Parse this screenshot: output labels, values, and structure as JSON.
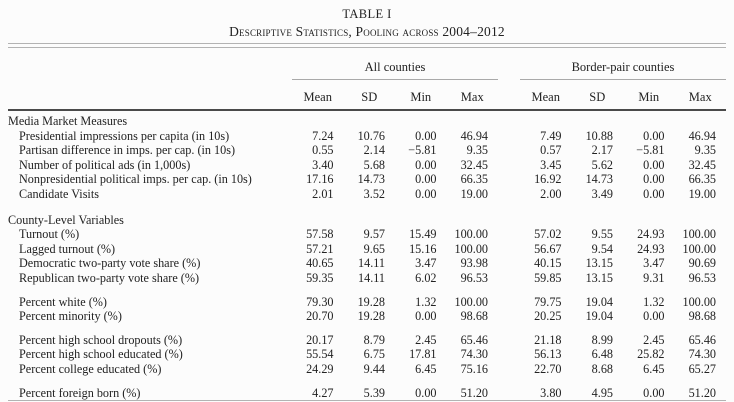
{
  "title": "TABLE I",
  "subtitle": "Descriptive Statistics, Pooling across 2004–2012",
  "column_groups": [
    {
      "label": "All counties"
    },
    {
      "label": "Border-pair counties"
    }
  ],
  "stat_headers": [
    "Mean",
    "SD",
    "Min",
    "Max"
  ],
  "sections": [
    {
      "header": "Media Market Measures",
      "groups": [
        [
          {
            "label": "Presidential impressions per capita (in 10s)",
            "values": [
              "7.24",
              "10.76",
              "0.00",
              "46.94",
              "7.49",
              "10.88",
              "0.00",
              "46.94"
            ]
          },
          {
            "label": "Partisan difference in imps. per cap. (in 10s)",
            "values": [
              "0.55",
              "2.14",
              "−5.81",
              "9.35",
              "0.57",
              "2.17",
              "−5.81",
              "9.35"
            ]
          },
          {
            "label": "Number of political ads (in 1,000s)",
            "values": [
              "3.40",
              "5.68",
              "0.00",
              "32.45",
              "3.45",
              "5.62",
              "0.00",
              "32.45"
            ]
          },
          {
            "label": "Nonpresidential political imps. per cap. (in 10s)",
            "values": [
              "17.16",
              "14.73",
              "0.00",
              "66.35",
              "16.92",
              "14.73",
              "0.00",
              "66.35"
            ]
          },
          {
            "label": "Candidate Visits",
            "values": [
              "2.01",
              "3.52",
              "0.00",
              "19.00",
              "2.00",
              "3.49",
              "0.00",
              "19.00"
            ]
          }
        ]
      ]
    },
    {
      "header": "County-Level Variables",
      "groups": [
        [
          {
            "label": "Turnout (%)",
            "values": [
              "57.58",
              "9.57",
              "15.49",
              "100.00",
              "57.02",
              "9.55",
              "24.93",
              "100.00"
            ]
          },
          {
            "label": "Lagged turnout (%)",
            "values": [
              "57.21",
              "9.65",
              "15.16",
              "100.00",
              "56.67",
              "9.54",
              "24.93",
              "100.00"
            ]
          },
          {
            "label": "Democratic two-party vote share (%)",
            "values": [
              "40.65",
              "14.11",
              "3.47",
              "93.98",
              "40.15",
              "13.15",
              "3.47",
              "90.69"
            ]
          },
          {
            "label": "Republican two-party vote share (%)",
            "values": [
              "59.35",
              "14.11",
              "6.02",
              "96.53",
              "59.85",
              "13.15",
              "9.31",
              "96.53"
            ]
          }
        ],
        [
          {
            "label": "Percent white (%)",
            "values": [
              "79.30",
              "19.28",
              "1.32",
              "100.00",
              "79.75",
              "19.04",
              "1.32",
              "100.00"
            ]
          },
          {
            "label": "Percent minority (%)",
            "values": [
              "20.70",
              "19.28",
              "0.00",
              "98.68",
              "20.25",
              "19.04",
              "0.00",
              "98.68"
            ]
          }
        ],
        [
          {
            "label": "Percent high school dropouts (%)",
            "values": [
              "20.17",
              "8.79",
              "2.45",
              "65.46",
              "21.18",
              "8.99",
              "2.45",
              "65.46"
            ]
          },
          {
            "label": "Percent high school educated (%)",
            "values": [
              "55.54",
              "6.75",
              "17.81",
              "74.30",
              "56.13",
              "6.48",
              "25.82",
              "74.30"
            ]
          },
          {
            "label": "Percent college educated (%)",
            "values": [
              "24.29",
              "9.44",
              "6.45",
              "75.16",
              "22.70",
              "8.68",
              "6.45",
              "65.27"
            ]
          }
        ],
        [
          {
            "label": "Percent foreign born (%)",
            "values": [
              "4.27",
              "5.39",
              "0.00",
              "51.20",
              "3.80",
              "4.95",
              "0.00",
              "51.20"
            ]
          }
        ]
      ]
    }
  ],
  "colors": {
    "background": "#fcfcfc",
    "text": "#222222",
    "rule_light": "#b3b3b3",
    "rule_dark": "#4a4a4a",
    "spanner_rule": "#a9a9a9"
  }
}
